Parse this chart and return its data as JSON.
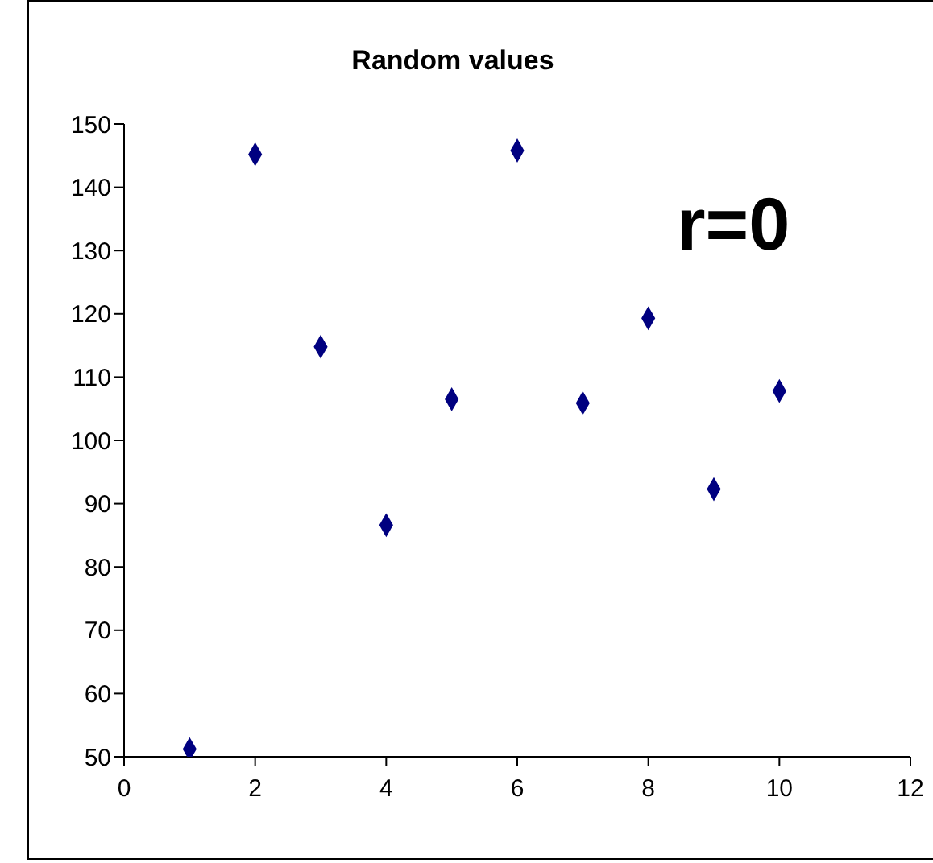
{
  "chart_data": {
    "type": "scatter",
    "title": "Random values",
    "x": [
      1,
      2,
      3,
      4,
      5,
      6,
      7,
      8,
      9,
      10
    ],
    "series": [
      {
        "color": "#000080",
        "values": [
          51.2,
          145.2,
          114.8,
          86.6,
          106.5,
          145.8,
          105.9,
          119.3,
          92.3,
          107.8
        ]
      }
    ],
    "xlim": [
      0,
      12
    ],
    "xticks": [
      0,
      2,
      4,
      6,
      8,
      10,
      12
    ],
    "ylim": [
      50,
      150
    ],
    "yticks": [
      50,
      60,
      70,
      80,
      90,
      100,
      110,
      120,
      130,
      140,
      150
    ],
    "annotations": [
      "r=0"
    ],
    "grid": false,
    "marker": "diamond"
  }
}
